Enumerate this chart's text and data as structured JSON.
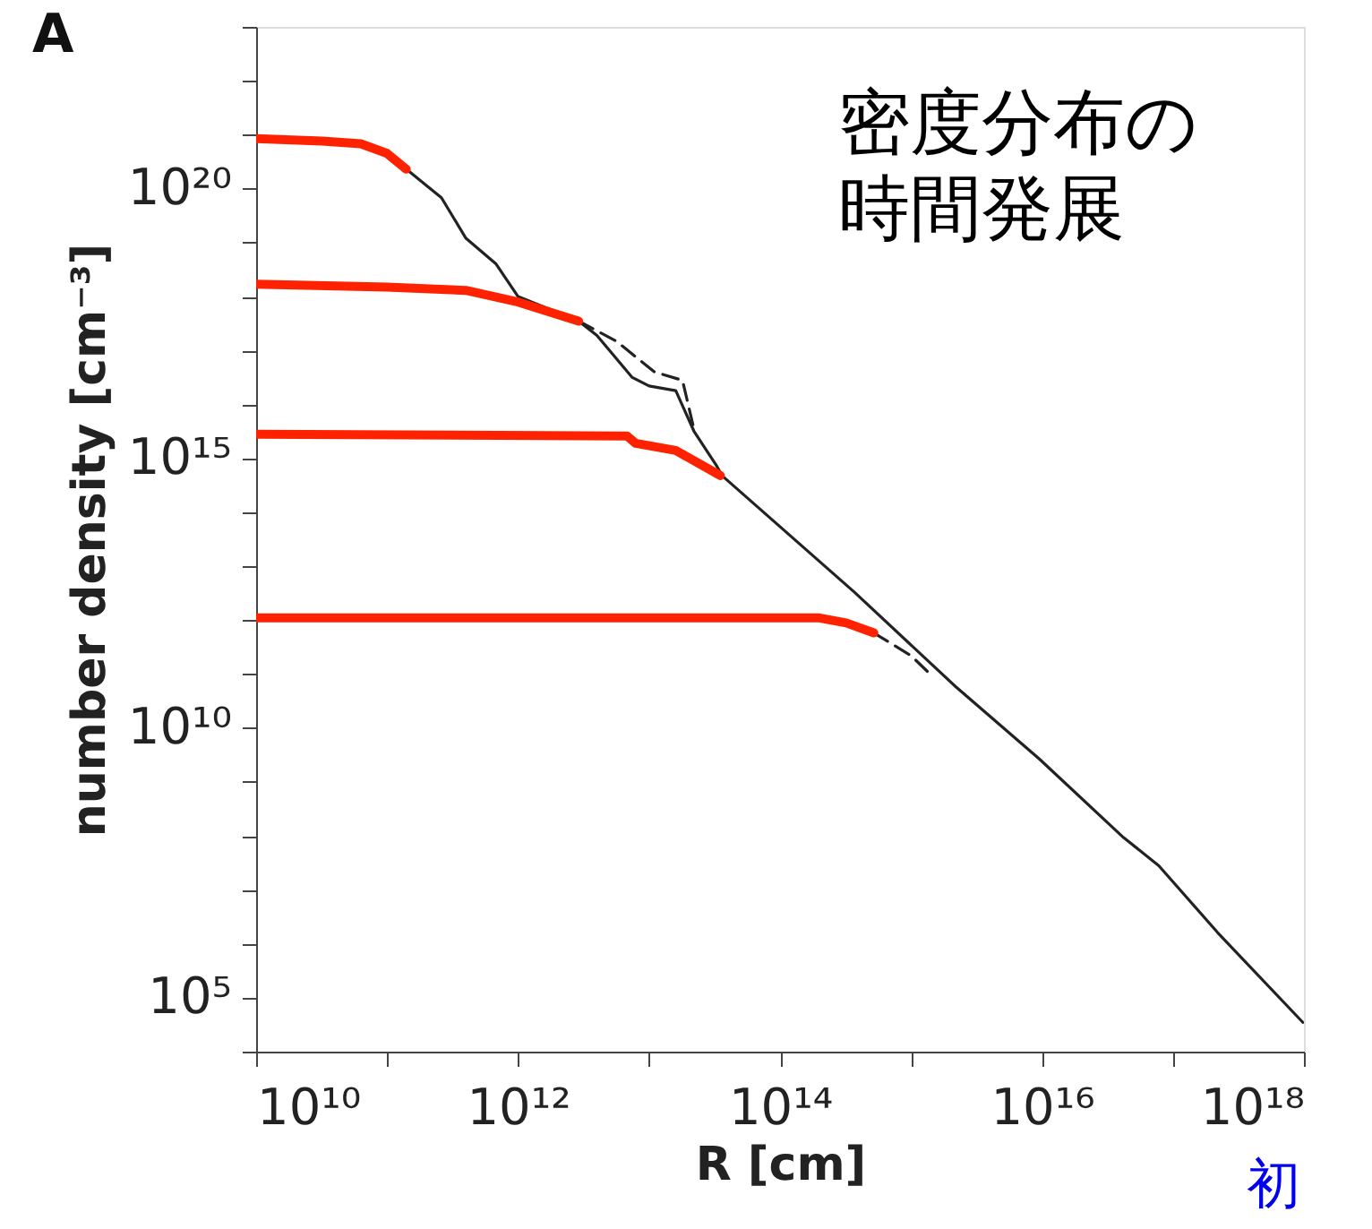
{
  "chart_data": {
    "type": "line",
    "title": "A",
    "xlabel": "R [cm]",
    "ylabel": "number density [cm⁻³]",
    "annotations": [
      "密度分布の",
      "時間発展",
      "初"
    ],
    "log": "xy",
    "grid": false,
    "marker": "none",
    "xlim": [
      10000000000.0,
      1e+18
    ],
    "ylim": [
      10000.0,
      1e+23
    ],
    "xticks": [
      {
        "value": 10000000000.0,
        "label": "10¹⁰"
      },
      {
        "value": 100000000000.0,
        "label": null
      },
      {
        "value": 1000000000000.0,
        "label": "10¹²"
      },
      {
        "value": 10000000000000.0,
        "label": null
      },
      {
        "value": 100000000000000.0,
        "label": "10¹⁴"
      },
      {
        "value": 1000000000000000.0,
        "label": null
      },
      {
        "value": 1e+16,
        "label": "10¹⁶"
      },
      {
        "value": 1e+17,
        "label": null
      },
      {
        "value": 1e+18,
        "label": "10¹⁸"
      }
    ],
    "yticks": [
      {
        "value": 10000.0,
        "label": null
      },
      {
        "value": 100000.0,
        "label": "10⁵"
      },
      {
        "value": 1000000.0,
        "label": null
      },
      {
        "value": 10000000.0,
        "label": null
      },
      {
        "value": 100000000.0,
        "label": null
      },
      {
        "value": 1000000000.0,
        "label": null
      },
      {
        "value": 10000000000.0,
        "label": "10¹⁰"
      },
      {
        "value": 100000000000.0,
        "label": null
      },
      {
        "value": 1000000000000.0,
        "label": null
      },
      {
        "value": 10000000000000.0,
        "label": null
      },
      {
        "value": 100000000000000.0,
        "label": null
      },
      {
        "value": 1000000000000000.0,
        "label": "10¹⁵"
      },
      {
        "value": 1e+16,
        "label": null
      },
      {
        "value": 1e+17,
        "label": null
      },
      {
        "value": 1e+18,
        "label": null
      },
      {
        "value": 1e+19,
        "label": null
      },
      {
        "value": 1e+20,
        "label": "10²⁰"
      },
      {
        "value": 1e+21,
        "label": null
      },
      {
        "value": 1e+22,
        "label": null
      },
      {
        "value": 1e+23,
        "label": null
      }
    ],
    "series": [
      {
        "color": "#222222",
        "line_style": "dashed",
        "x": [
          2900000000000.0,
          5600000000000.0,
          11000000000000.0,
          18000000000000.0,
          22000000000000.0
        ],
        "values": [
          3.5e+17,
          1.5e+17,
          4e+16,
          2.8e+16,
          3500000000000000.0
        ]
      },
      {
        "color": "#222222",
        "line_style": "dashed",
        "x": [
          520000000000000.0,
          1000000000000000.0,
          1400000000000000.0
        ],
        "values": [
          580000000000.0,
          220000000000.0,
          100000000000.0
        ]
      },
      {
        "color": "#222222",
        "line_style": "solid",
        "x": [
          140000000000.0,
          260000000000.0,
          400000000000.0,
          680000000000.0,
          1000000000000.0,
          2900000000000.0,
          4000000000000.0,
          7400000000000.0,
          10000000000000.0,
          16000000000000.0,
          22000000000000.0,
          33000000000000.0,
          36000000000000.0,
          370000000000000.0,
          2200000000000000.0,
          9500000000000000.0,
          4.2e+16,
          7.8e+16,
          2.2e+17,
          9.8e+17
        ],
        "values": [
          2.3e+20,
          6.8e+19,
          1.2e+19,
          4e+18,
          1e+18,
          3.5e+17,
          1.9e+17,
          3.2e+16,
          2.2e+16,
          1.8e+16,
          3200000000000000.0,
          710000000000000.0,
          480000000000000.0,
          3300000000000.0,
          58000000000.0,
          2700000000.0,
          93000000.0,
          28000000.0,
          1600000.0,
          35000.0
        ]
      },
      {
        "color": "#ff2200",
        "line_style": "solid",
        "x": [
          10000000000.0,
          32000000000.0,
          63000000000.0,
          100000000000.0,
          140000000000.0
        ],
        "values": [
          8.5e+20,
          7.6e+20,
          6.8e+20,
          4.5e+20,
          2.3e+20
        ]
      },
      {
        "color": "#ff2200",
        "line_style": "solid",
        "x": [
          10000000000.0,
          100000000000.0,
          400000000000.0,
          1000000000000.0,
          2900000000000.0
        ],
        "values": [
          1.7e+18,
          1.5e+18,
          1.3e+18,
          7.9e+17,
          3.5e+17
        ]
      },
      {
        "color": "#ff2200",
        "line_style": "solid",
        "x": [
          10000000000.0,
          6800000000000.0,
          7900000000000.0,
          16000000000000.0,
          35000000000000.0
        ],
        "values": [
          2800000000000000.0,
          2600000000000000.0,
          1900000000000000.0,
          1400000000000000.0,
          480000000000000.0
        ]
      },
      {
        "color": "#ff2200",
        "line_style": "solid",
        "x": [
          10000000000.0,
          200000000000000.0,
          320000000000000.0,
          520000000000000.0
        ],
        "values": [
          1100000000000.0,
          1100000000000.0,
          890000000000.0,
          580000000000.0
        ]
      }
    ]
  }
}
